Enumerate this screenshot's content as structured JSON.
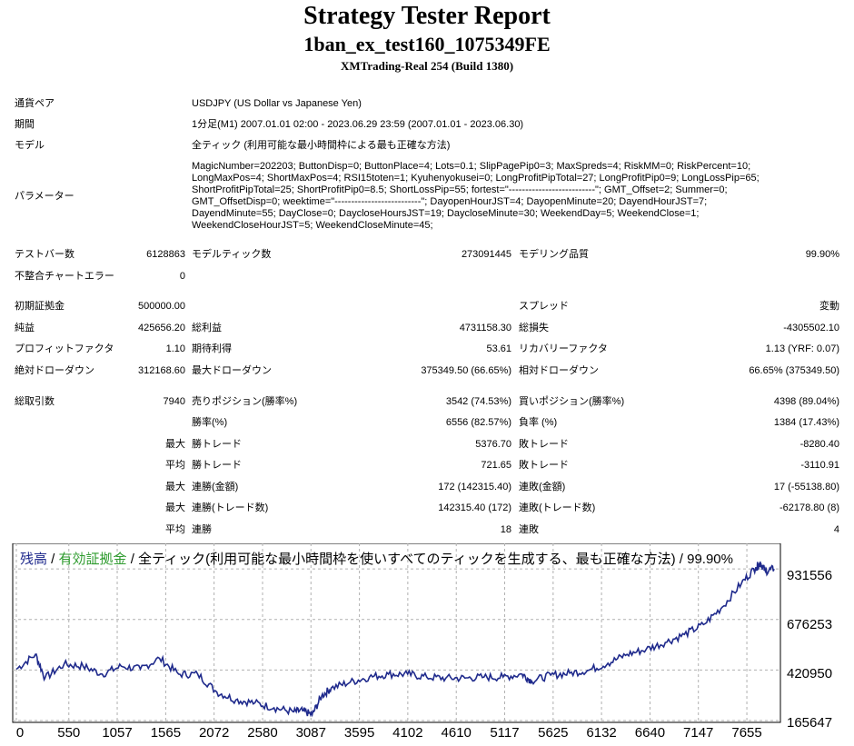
{
  "report": {
    "title": "Strategy Tester Report",
    "expert": "1ban_ex_test160_1075349FE",
    "server": "XMTrading-Real 254 (Build 1380)"
  },
  "info": [
    {
      "label": "通貨ペア",
      "value": "USDJPY (US Dollar vs Japanese Yen)"
    },
    {
      "label": "期間",
      "value": "1分足(M1) 2007.01.01 02:00 - 2023.06.29 23:59 (2007.01.01 - 2023.06.30)"
    },
    {
      "label": "モデル",
      "value": "全ティック (利用可能な最小時間枠による最も正確な方法)"
    }
  ],
  "parameters": {
    "label": "パラメーター",
    "lines": [
      "MagicNumber=202203; ButtonDisp=0; ButtonPlace=4; Lots=0.1; SlipPagePip0=3; MaxSpreds=4; RiskMM=0; RiskPercent=10;",
      "LongMaxPos=4; ShortMaxPos=4; RSI15toten=1; Kyuhenyokusei=0; LongProfitPipTotal=27; LongProfitPip0=9; LongLossPip=65;",
      "ShortProfitPipTotal=25; ShortProfitPip0=8.5; ShortLossPip=55; fortest=\"--------------------------\"; GMT_Offset=2; Summer=0;",
      "GMT_OffsetDisp=0; weektime=\"--------------------------\"; DayopenHourJST=4; DayopenMinute=20; DayendHourJST=7;",
      "DayendMinute=55; DayClose=0; DaycloseHoursJST=19; DaycloseMinute=30; WeekendDay=5; WeekendClose=1;",
      "WeekendCloseHourJST=5; WeekendCloseMinute=45;"
    ]
  },
  "bars": {
    "test_bars_label": "テストバー数",
    "test_bars": "6128863",
    "ticks_label": "モデルティック数",
    "ticks": "273091445",
    "quality_label": "モデリング品質",
    "quality": "99.90%",
    "mismatch_label": "不整合チャートエラー",
    "mismatch": "0"
  },
  "stats": {
    "deposit_label": "初期証拠金",
    "deposit": "500000.00",
    "spread_label": "スプレッド",
    "spread": "変動",
    "net_label": "純益",
    "net": "425656.20",
    "gross_profit_label": "総利益",
    "gross_profit": "4731158.30",
    "gross_loss_label": "総損失",
    "gross_loss": "-4305502.10",
    "pf_label": "プロフィットファクタ",
    "pf": "1.10",
    "expected_label": "期待利得",
    "expected": "53.61",
    "recovery_label": "リカバリーファクタ",
    "recovery": "1.13 (YRF: 0.07)",
    "abs_dd_label": "絶対ドローダウン",
    "abs_dd": "312168.60",
    "max_dd_label": "最大ドローダウン",
    "max_dd": "375349.50 (66.65%)",
    "rel_dd_label": "相対ドローダウン",
    "rel_dd": "66.65% (375349.50)"
  },
  "trades": {
    "total_label": "総取引数",
    "total": "7940",
    "short_label": "売りポジション(勝率%)",
    "short": "3542 (74.53%)",
    "long_label": "買いポジション(勝率%)",
    "long": "4398 (89.04%)",
    "win_rate_label": "勝率(%)",
    "win_rate": "6556 (82.57%)",
    "loss_rate_label": "負率 (%)",
    "loss_rate": "1384 (17.43%)",
    "max_label": "最大",
    "avg_label": "平均",
    "win_trade_label": "勝トレード",
    "loss_trade_label": "敗トレード",
    "max_win": "5376.70",
    "max_loss": "-8280.40",
    "avg_win": "721.65",
    "avg_loss": "-3110.91",
    "consec_win_money_label": "連勝(金額)",
    "consec_win_money": "172 (142315.40)",
    "consec_loss_money_label": "連敗(金額)",
    "consec_loss_money": "17 (-55138.80)",
    "consec_win_count_label": "連勝(トレード数)",
    "consec_win_count": "142315.40 (172)",
    "consec_loss_count_label": "連敗(トレード数)",
    "consec_loss_count": "-62178.80 (8)",
    "avg_consec_win_label": "連勝",
    "avg_consec_win": "18",
    "avg_consec_loss_label": "連敗",
    "avg_consec_loss": "4"
  },
  "chart_data": {
    "type": "line",
    "legend": {
      "balance": "残高",
      "sep1": " / ",
      "equity": "有効証拠金",
      "rest": " / 全ティック(利用可能な最小時間枠を使いすべてのティックを生成する、最も正確な方法) / 99.90%"
    },
    "colors": {
      "balance": "#1f2a8c",
      "equity": "#2e9b2e",
      "grid": "#b0b0b0"
    },
    "x_ticks": [
      "0",
      "550",
      "1057",
      "1565",
      "2072",
      "2580",
      "3087",
      "3595",
      "4102",
      "4610",
      "5117",
      "5625",
      "6132",
      "6640",
      "7147",
      "7655"
    ],
    "y_ticks": [
      "931556",
      "676253",
      "420950",
      "165647"
    ],
    "xlim": [
      0,
      7940
    ],
    "ylim": [
      165647,
      1042000
    ],
    "series": [
      {
        "x": [
          0,
          200,
          300,
          500,
          700,
          900,
          1100,
          1300,
          1500,
          1700,
          1900,
          2100,
          2300,
          2500,
          2700,
          2900,
          3000,
          3100,
          3200,
          3300,
          3500,
          3700,
          3900,
          4100,
          4300,
          4500,
          4700,
          4900,
          5100,
          5300,
          5400,
          5600,
          5800,
          6000,
          6200,
          6400,
          6600,
          6800,
          7000,
          7200,
          7400,
          7600,
          7750,
          7800,
          7850,
          7940
        ],
        "values": [
          425000,
          500000,
          380000,
          450000,
          440000,
          400000,
          440000,
          425000,
          480000,
          400000,
          400000,
          310000,
          270000,
          255000,
          230000,
          210000,
          215000,
          195000,
          290000,
          330000,
          360000,
          385000,
          400000,
          400000,
          385000,
          380000,
          380000,
          385000,
          385000,
          400000,
          365000,
          395000,
          405000,
          420000,
          455000,
          500000,
          525000,
          560000,
          600000,
          650000,
          740000,
          860000,
          940000,
          960000,
          920000,
          931556
        ]
      }
    ]
  }
}
